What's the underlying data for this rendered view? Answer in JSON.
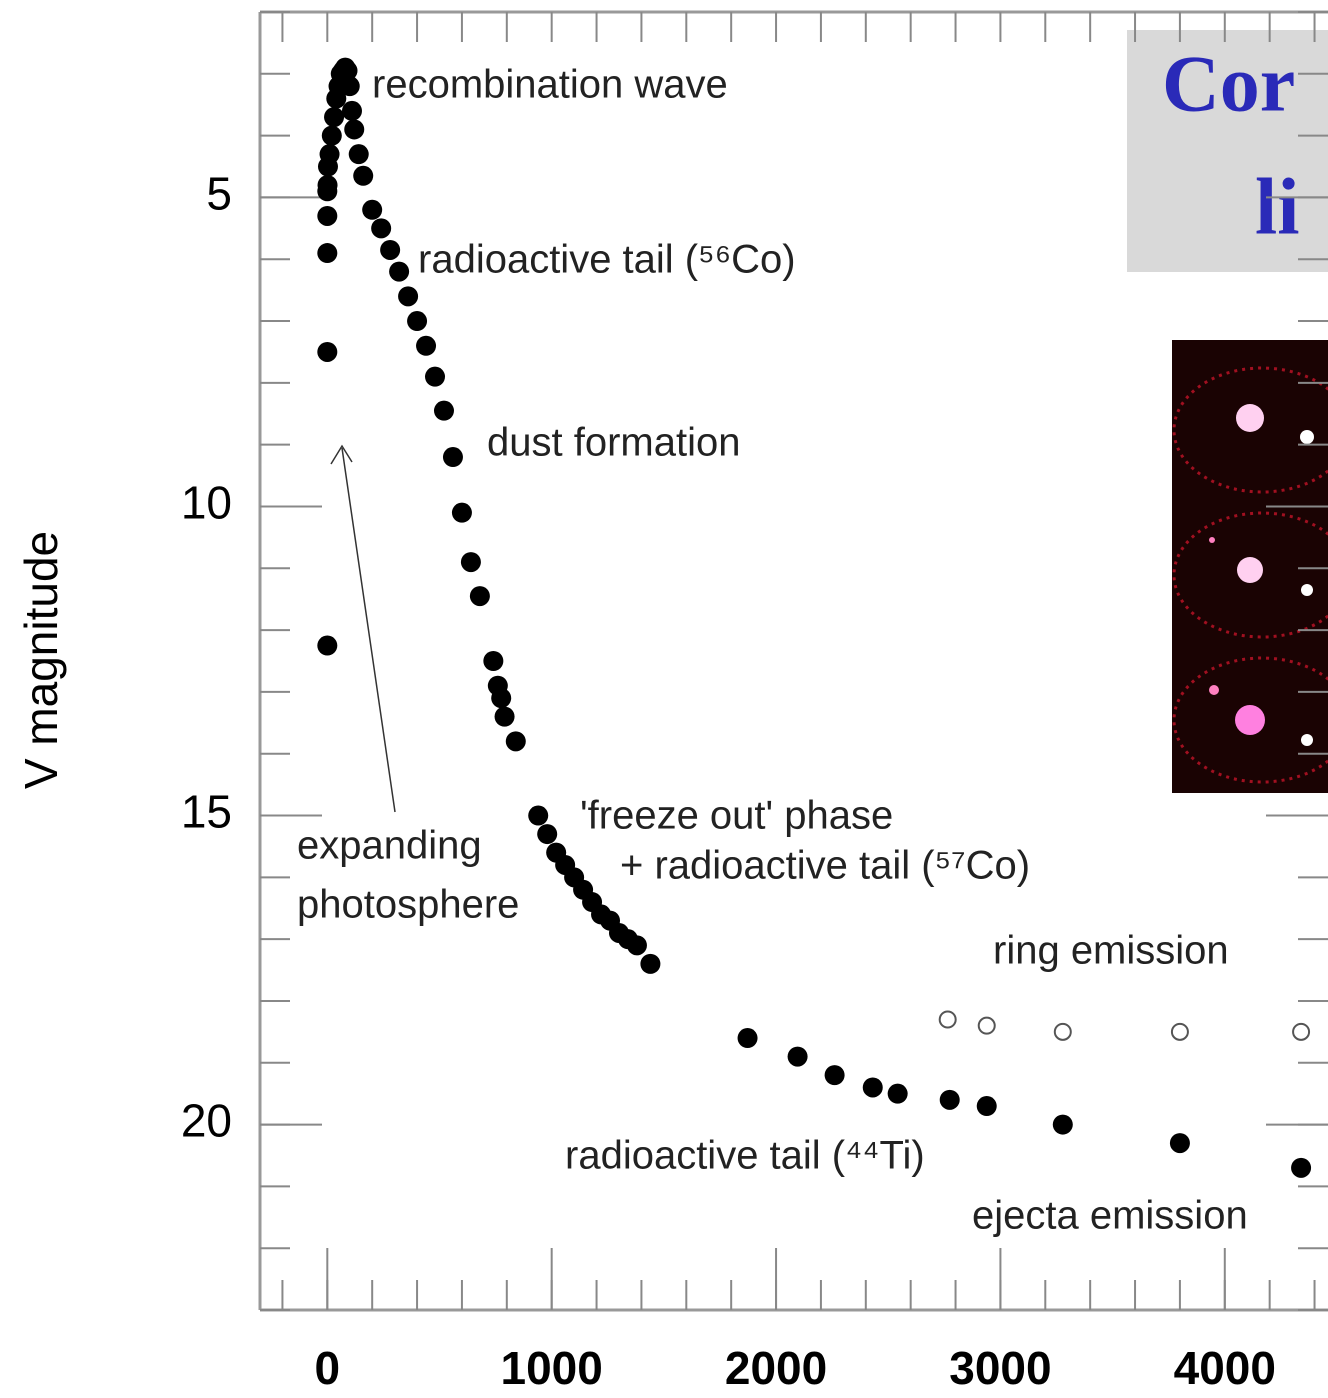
{
  "chart_data": {
    "type": "scatter",
    "title_lines": [
      "Cor",
      "li"
    ],
    "ylabel": "V magnitude",
    "xlim": [
      -300,
      4460
    ],
    "ylim": [
      2,
      23
    ],
    "y_inverted": true,
    "xticks": [
      0,
      1000,
      2000,
      3000,
      4000
    ],
    "yticks": [
      5,
      10,
      15,
      20
    ],
    "xminor": 200,
    "yminor": 1,
    "annotations": [
      "recombination wave",
      "radioactive tail (⁵⁶Co)",
      "dust formation",
      "expanding",
      "photosphere",
      "'freeze out' phase",
      "+ radioactive tail (⁵⁷Co)",
      "ring emission",
      "radioactive tail (⁴⁴Ti)",
      "ejecta emission"
    ],
    "series": [
      {
        "color": "#000000",
        "filled": true,
        "x": [
          0,
          0,
          0,
          0,
          0,
          1,
          3,
          10,
          20,
          30,
          40,
          50,
          60,
          70,
          80,
          90,
          100,
          110,
          120,
          140,
          160,
          200,
          240,
          280,
          320,
          360,
          400,
          440,
          480,
          520,
          560,
          600,
          640,
          680,
          740,
          760,
          775,
          790,
          840,
          940,
          980,
          1020,
          1060,
          1100,
          1140,
          1180,
          1220,
          1260,
          1300,
          1340,
          1380,
          1440,
          1873,
          2096,
          2261,
          2431,
          2542,
          2774,
          2939,
          3278,
          3800,
          4340
        ],
        "values": [
          5.3,
          5.9,
          7.5,
          12.25,
          4.9,
          4.8,
          4.5,
          4.3,
          4.0,
          3.7,
          3.4,
          3.2,
          3.0,
          2.95,
          2.9,
          2.95,
          3.2,
          3.6,
          3.9,
          4.3,
          4.65,
          5.2,
          5.5,
          5.85,
          6.2,
          6.6,
          7.0,
          7.4,
          7.9,
          8.45,
          9.2,
          10.1,
          10.9,
          11.45,
          12.5,
          12.9,
          13.1,
          13.4,
          13.8,
          15.0,
          15.3,
          15.6,
          15.8,
          16.0,
          16.2,
          16.4,
          16.6,
          16.7,
          16.9,
          17.0,
          17.1,
          17.4,
          18.6,
          18.9,
          19.2,
          19.4,
          19.5,
          19.6,
          19.7,
          20.0,
          20.3,
          20.7
        ]
      },
      {
        "color": "#555555",
        "filled": false,
        "x": [
          2765,
          2939,
          3278,
          3800,
          4340
        ],
        "values": [
          18.3,
          18.4,
          18.5,
          18.5,
          18.5
        ]
      }
    ]
  }
}
